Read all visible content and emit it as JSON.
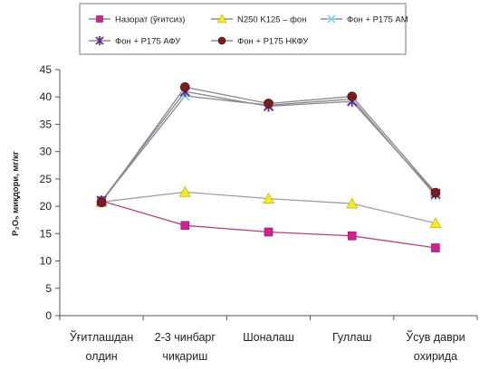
{
  "chart_data": {
    "type": "line",
    "title": "",
    "xlabel": "",
    "ylabel": "P₂O₅ миқдори, мг/кг",
    "ylim": [
      0,
      45
    ],
    "yticks": [
      0,
      5,
      10,
      15,
      20,
      25,
      30,
      35,
      40,
      45
    ],
    "grid": false,
    "legend_position": "top",
    "categories": [
      [
        "Ўғитлашдан",
        "олдин"
      ],
      [
        "2-3 чинбарг",
        "чиқариш"
      ],
      [
        "Шоналаш"
      ],
      [
        "Гуллаш"
      ],
      [
        "Ўсув даври",
        "охирида"
      ]
    ],
    "series": [
      {
        "name": "Назорат (ўғитсиз)",
        "color": "#d0218c",
        "marker": "square",
        "values": [
          21,
          16.5,
          15.3,
          14.6,
          12.4
        ]
      },
      {
        "name": "N250 K125 – фон",
        "color": "#f4ea1c",
        "marker": "triangle",
        "values": [
          20.8,
          22.6,
          21.4,
          20.5,
          16.9
        ]
      },
      {
        "name": "Фон + Р175 АМ",
        "color": "#7fd1ea",
        "marker": "asterisk",
        "values": [
          20.9,
          40.2,
          38.5,
          39.6,
          22.0
        ]
      },
      {
        "name": "Фон + Р175 АФУ",
        "color": "#6b2a8a",
        "marker": "xstar",
        "values": [
          21.0,
          41.0,
          38.3,
          39.2,
          22.3
        ]
      },
      {
        "name": "Фон + Р175 НКФУ",
        "color": "#7a1c1c",
        "marker": "circle",
        "values": [
          20.7,
          41.8,
          38.8,
          40.1,
          22.5
        ]
      }
    ]
  }
}
